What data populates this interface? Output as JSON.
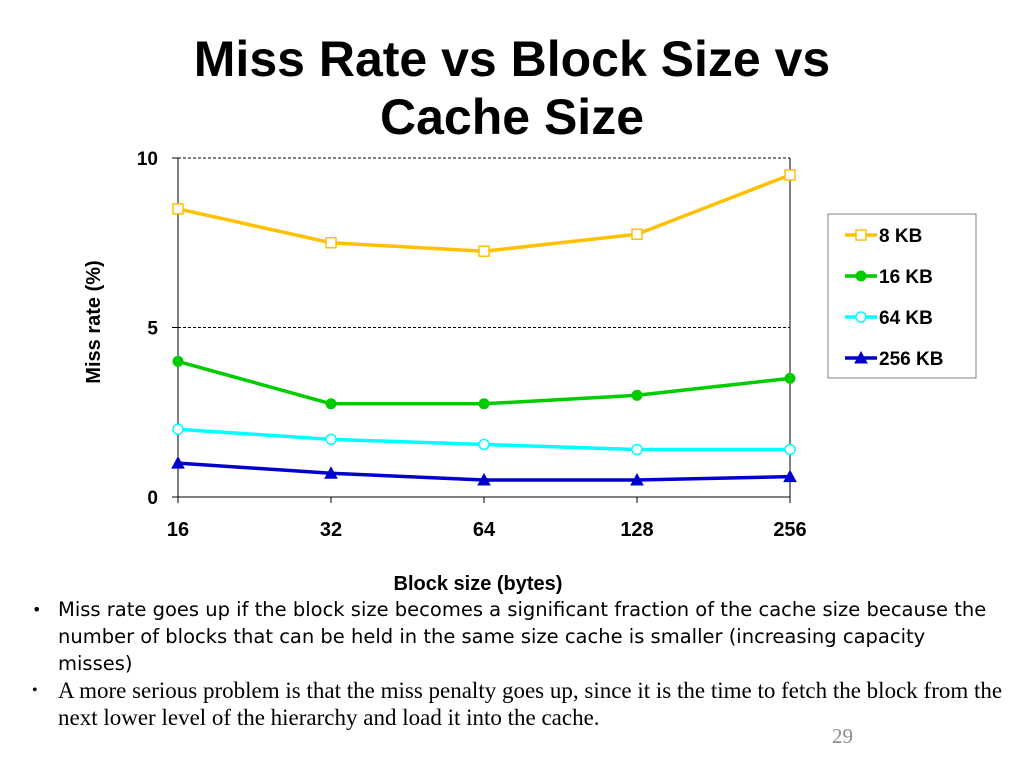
{
  "slide": {
    "title_line1": "Miss Rate vs Block Size vs",
    "title_line2": "Cache Size",
    "bullets": [
      "Miss rate goes up if the block size becomes a significant fraction of the cache size because the number of blocks that can be held in the same size cache is smaller (increasing capacity misses)",
      "A more serious problem is that the miss penalty goes up, since it is the time to fetch the block from the next lower level of the hierarchy and load it into the cache."
    ],
    "bullet_symbol": "•",
    "page_number": "29"
  },
  "chart_data": {
    "type": "line",
    "title": "",
    "xlabel": "Block size (bytes)",
    "ylabel": "Miss rate (%)",
    "categories": [
      "16",
      "32",
      "64",
      "128",
      "256"
    ],
    "ylim": [
      0,
      10
    ],
    "yticks": [
      "0",
      "5",
      "10"
    ],
    "grid": "horizontal dashed",
    "legend_position": "right",
    "series": [
      {
        "name": "8 KB",
        "values": [
          8.5,
          7.5,
          7.25,
          7.75,
          9.5
        ],
        "color": "#FFC000",
        "marker": "open-square"
      },
      {
        "name": "16 KB",
        "values": [
          4.0,
          2.75,
          2.75,
          3.0,
          3.5
        ],
        "color": "#00CC00",
        "marker": "filled-circle"
      },
      {
        "name": "64 KB",
        "values": [
          2.0,
          1.7,
          1.55,
          1.4,
          1.4
        ],
        "color": "#00FFFF",
        "marker": "open-circle"
      },
      {
        "name": "256 KB",
        "values": [
          1.0,
          0.7,
          0.5,
          0.5,
          0.6
        ],
        "color": "#0000CC",
        "marker": "filled-triangle"
      }
    ]
  }
}
